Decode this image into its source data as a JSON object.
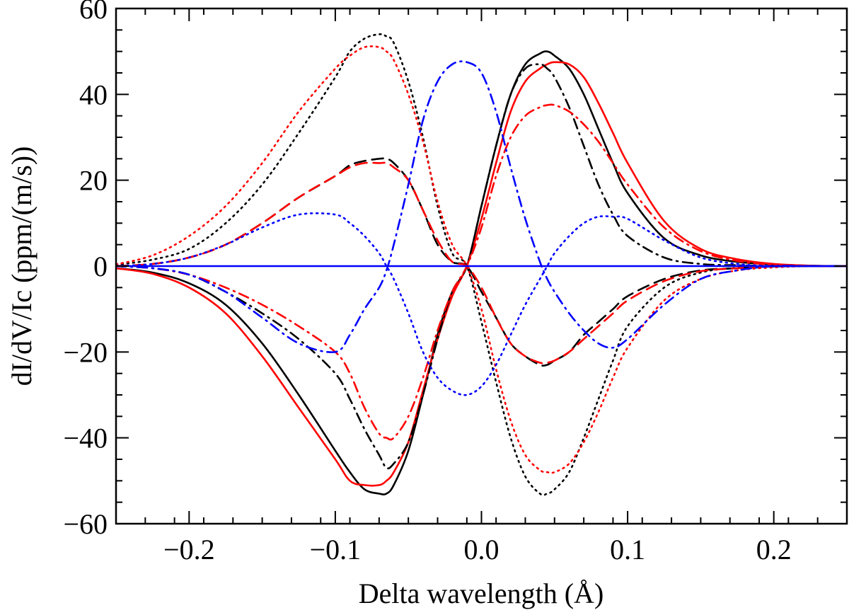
{
  "chart_data": {
    "type": "line",
    "title": "",
    "xlabel": "Delta wavelength (Å)",
    "ylabel": "dI/dV/Ic (ppm/(m/s))",
    "xlim": [
      -0.25,
      0.25
    ],
    "ylim": [
      -60,
      60
    ],
    "x_ticks": [
      -0.2,
      -0.1,
      0.0,
      0.1,
      0.2
    ],
    "x_tick_labels": [
      "−0.2",
      "−0.1",
      "0.0",
      "0.1",
      "0.2"
    ],
    "y_ticks": [
      -60,
      -40,
      -20,
      0,
      20,
      40,
      60
    ],
    "y_tick_labels": [
      "−60",
      "−40",
      "−20",
      "0",
      "20",
      "40",
      "60"
    ],
    "x": [
      -0.25,
      -0.225,
      -0.2,
      -0.175,
      -0.15,
      -0.125,
      -0.1,
      -0.09,
      -0.08,
      -0.07,
      -0.065,
      -0.06,
      -0.05,
      -0.04,
      -0.03,
      -0.02,
      -0.01,
      0.0,
      0.01,
      0.02,
      0.03,
      0.04,
      0.045,
      0.05,
      0.06,
      0.07,
      0.08,
      0.09,
      0.1,
      0.125,
      0.15,
      0.175,
      0.2,
      0.225,
      0.25
    ],
    "series": [
      {
        "name": "black solid",
        "color": "#000000",
        "dash": "solid",
        "values": [
          -0.5,
          -1.5,
          -4,
          -9,
          -18,
          -30,
          -43,
          -48,
          -52,
          -53,
          -53,
          -51,
          -43,
          -30,
          -16,
          -6,
          0,
          14,
          28,
          40,
          47,
          49.5,
          50,
          49,
          46,
          40,
          32,
          24,
          17,
          6.5,
          2.5,
          1,
          0.4,
          0.1,
          0
        ]
      },
      {
        "name": "red solid",
        "color": "#ff0000",
        "dash": "solid",
        "values": [
          -0.5,
          -1.8,
          -5,
          -11,
          -21,
          -33,
          -45,
          -50,
          -51,
          -51,
          -50,
          -48,
          -41,
          -29,
          -17,
          -7,
          0,
          11,
          24,
          36,
          43,
          46,
          47,
          47.5,
          47,
          44,
          38,
          31,
          24,
          10.5,
          4,
          1.6,
          0.5,
          0.1,
          0
        ]
      },
      {
        "name": "black dotted",
        "color": "#000000",
        "dash": "dotted",
        "values": [
          0.3,
          1.5,
          4,
          10,
          19,
          31,
          44,
          50,
          53,
          54,
          53.5,
          52,
          43,
          30,
          14,
          3,
          0,
          -13,
          -27,
          -40,
          -49,
          -53,
          -53,
          -52,
          -48,
          -40,
          -31,
          -22,
          -14,
          -5,
          -1.5,
          -0.4,
          -0.1,
          0,
          0
        ]
      },
      {
        "name": "red dotted",
        "color": "#ff0000",
        "dash": "dotted",
        "values": [
          0.4,
          2.5,
          7,
          14,
          24,
          36,
          46,
          49,
          51,
          51,
          50,
          48,
          40,
          29,
          15,
          5,
          0,
          -10,
          -24,
          -36,
          -44,
          -47.5,
          -48,
          -48,
          -46,
          -41,
          -34,
          -26,
          -19,
          -8,
          -3,
          -1,
          -0.3,
          0,
          0
        ]
      },
      {
        "name": "black dashed",
        "color": "#000000",
        "dash": "dashed",
        "values": [
          0,
          0.5,
          2,
          5,
          10,
          16,
          21,
          23.5,
          24.5,
          25,
          25,
          24,
          20,
          13,
          5,
          1,
          0,
          -6,
          -12,
          -18,
          -21,
          -23,
          -23,
          -22,
          -20,
          -16,
          -13,
          -10,
          -7,
          -3,
          -1,
          -0.5,
          0,
          0,
          0
        ]
      },
      {
        "name": "red dashed",
        "color": "#ff0000",
        "dash": "dashed",
        "values": [
          0,
          0.5,
          2,
          5,
          10,
          16,
          21,
          23,
          24,
          24,
          24,
          23,
          20,
          13,
          6,
          1,
          0,
          -5,
          -12,
          -18,
          -21,
          -22.5,
          -22.5,
          -22,
          -20,
          -17,
          -14,
          -11,
          -8,
          -3.5,
          -1.2,
          -0.5,
          0,
          0,
          0
        ]
      },
      {
        "name": "black dash-dot",
        "color": "#000000",
        "dash": "dashdot",
        "values": [
          0,
          -0.5,
          -2,
          -6,
          -11,
          -17,
          -25,
          -31,
          -38,
          -44,
          -47,
          -46,
          -41,
          -30,
          -17,
          -6,
          0,
          14,
          28,
          40,
          46,
          47,
          46,
          44,
          37,
          28,
          19,
          12,
          7,
          2,
          0.5,
          0.2,
          0,
          0,
          0
        ]
      },
      {
        "name": "red dash-dot",
        "color": "#ff0000",
        "dash": "dashdot",
        "values": [
          0,
          -0.5,
          -2,
          -5,
          -9,
          -14,
          -20,
          -25,
          -33,
          -39,
          -40,
          -40,
          -35,
          -26,
          -15,
          -6,
          0,
          9,
          21,
          30,
          35,
          37,
          37.5,
          37.5,
          36,
          33,
          29,
          24,
          19,
          9,
          3.5,
          1.2,
          0.3,
          0,
          0
        ]
      },
      {
        "name": "blue dash-dot",
        "color": "#0000ff",
        "dash": "dashdot",
        "values": [
          0,
          -0.5,
          -2,
          -6,
          -12,
          -18,
          -20,
          -16,
          -10,
          -5,
          -1,
          5,
          19,
          34,
          43,
          47,
          47.5,
          45,
          36,
          23,
          11,
          1,
          -3,
          -6,
          -11,
          -15,
          -18,
          -19,
          -17,
          -9,
          -3,
          -1,
          0,
          0,
          0
        ]
      },
      {
        "name": "blue dotted",
        "color": "#0000ff",
        "dash": "dotted",
        "values": [
          0,
          0.5,
          2,
          5,
          9,
          12,
          12,
          10,
          7,
          3,
          0,
          -3,
          -11,
          -20,
          -26,
          -29,
          -30,
          -28,
          -23,
          -16,
          -9,
          -3,
          0,
          3,
          7,
          10,
          11.5,
          11.5,
          11,
          6,
          2,
          0.5,
          0,
          0,
          0
        ]
      },
      {
        "name": "blue solid",
        "color": "#0000ff",
        "dash": "solid",
        "values": [
          0,
          0,
          0,
          0,
          0,
          0,
          0,
          0,
          0,
          0,
          0,
          0,
          0,
          0,
          0,
          0,
          0,
          0,
          0,
          0,
          0,
          0,
          0,
          0,
          0,
          0,
          0,
          0,
          0,
          0,
          0,
          0,
          0,
          0,
          0
        ]
      }
    ]
  }
}
